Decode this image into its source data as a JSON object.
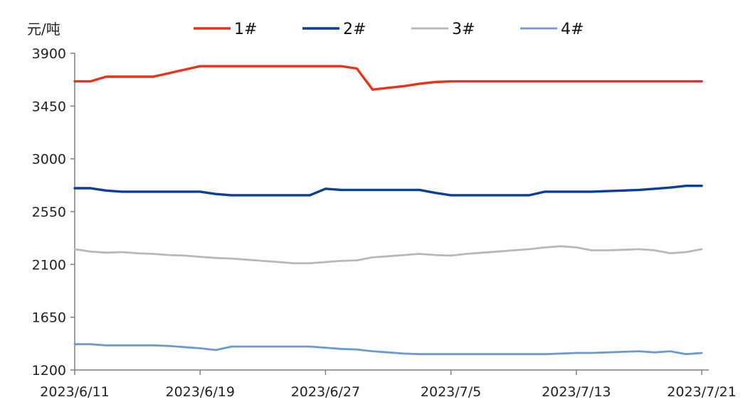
{
  "chart_data": {
    "type": "line",
    "unit_label": "元/吨",
    "ylim": [
      1200,
      3900
    ],
    "y_ticks": [
      "1200",
      "1650",
      "2100",
      "2550",
      "3000",
      "3450",
      "3900"
    ],
    "x_tick_labels": [
      "2023/6/11",
      "2023/6/19",
      "2023/6/27",
      "2023/7/5",
      "2023/7/13",
      "2023/7/21"
    ],
    "grid": false,
    "legend_position": "top",
    "series": [
      {
        "name": "1#",
        "color": "#e8331c",
        "points": [
          [
            "2023/6/11",
            3660
          ],
          [
            "2023/6/12",
            3660
          ],
          [
            "2023/6/13",
            3700
          ],
          [
            "2023/6/14",
            3700
          ],
          [
            "2023/6/15",
            3700
          ],
          [
            "2023/6/16",
            3700
          ],
          [
            "2023/6/17",
            3730
          ],
          [
            "2023/6/18",
            3760
          ],
          [
            "2023/6/19",
            3790
          ],
          [
            "2023/6/20",
            3790
          ],
          [
            "2023/6/21",
            3790
          ],
          [
            "2023/6/22",
            3790
          ],
          [
            "2023/6/23",
            3790
          ],
          [
            "2023/6/24",
            3790
          ],
          [
            "2023/6/25",
            3790
          ],
          [
            "2023/6/26",
            3790
          ],
          [
            "2023/6/27",
            3790
          ],
          [
            "2023/6/28",
            3790
          ],
          [
            "2023/6/29",
            3770
          ],
          [
            "2023/6/30",
            3590
          ],
          [
            "2023/7/1",
            3605
          ],
          [
            "2023/7/2",
            3620
          ],
          [
            "2023/7/3",
            3640
          ],
          [
            "2023/7/4",
            3655
          ],
          [
            "2023/7/5",
            3660
          ],
          [
            "2023/7/21",
            3660
          ]
        ]
      },
      {
        "name": "2#",
        "color": "#0a3f9a",
        "points": [
          [
            "2023/6/11",
            2750
          ],
          [
            "2023/6/12",
            2750
          ],
          [
            "2023/6/13",
            2730
          ],
          [
            "2023/6/14",
            2720
          ],
          [
            "2023/6/15",
            2720
          ],
          [
            "2023/6/16",
            2720
          ],
          [
            "2023/6/17",
            2720
          ],
          [
            "2023/6/18",
            2720
          ],
          [
            "2023/6/19",
            2720
          ],
          [
            "2023/6/20",
            2700
          ],
          [
            "2023/6/21",
            2690
          ],
          [
            "2023/6/22",
            2690
          ],
          [
            "2023/6/23",
            2690
          ],
          [
            "2023/6/24",
            2690
          ],
          [
            "2023/6/25",
            2690
          ],
          [
            "2023/6/26",
            2690
          ],
          [
            "2023/6/27",
            2745
          ],
          [
            "2023/6/28",
            2735
          ],
          [
            "2023/6/29",
            2735
          ],
          [
            "2023/6/30",
            2735
          ],
          [
            "2023/7/1",
            2735
          ],
          [
            "2023/7/2",
            2735
          ],
          [
            "2023/7/3",
            2735
          ],
          [
            "2023/7/4",
            2710
          ],
          [
            "2023/7/5",
            2690
          ],
          [
            "2023/7/6",
            2690
          ],
          [
            "2023/7/7",
            2690
          ],
          [
            "2023/7/8",
            2690
          ],
          [
            "2023/7/9",
            2690
          ],
          [
            "2023/7/10",
            2690
          ],
          [
            "2023/7/11",
            2720
          ],
          [
            "2023/7/12",
            2720
          ],
          [
            "2023/7/13",
            2720
          ],
          [
            "2023/7/14",
            2720
          ],
          [
            "2023/7/15",
            2725
          ],
          [
            "2023/7/16",
            2730
          ],
          [
            "2023/7/17",
            2735
          ],
          [
            "2023/7/18",
            2745
          ],
          [
            "2023/7/19",
            2755
          ],
          [
            "2023/7/20",
            2770
          ],
          [
            "2023/7/21",
            2770
          ]
        ]
      },
      {
        "name": "3#",
        "color": "#b8b8b8",
        "points": [
          [
            "2023/6/11",
            2230
          ],
          [
            "2023/6/12",
            2210
          ],
          [
            "2023/6/13",
            2200
          ],
          [
            "2023/6/14",
            2205
          ],
          [
            "2023/6/15",
            2195
          ],
          [
            "2023/6/16",
            2190
          ],
          [
            "2023/6/17",
            2180
          ],
          [
            "2023/6/18",
            2175
          ],
          [
            "2023/6/19",
            2165
          ],
          [
            "2023/6/20",
            2155
          ],
          [
            "2023/6/21",
            2150
          ],
          [
            "2023/6/22",
            2140
          ],
          [
            "2023/6/23",
            2130
          ],
          [
            "2023/6/24",
            2120
          ],
          [
            "2023/6/25",
            2110
          ],
          [
            "2023/6/26",
            2110
          ],
          [
            "2023/6/27",
            2120
          ],
          [
            "2023/6/28",
            2130
          ],
          [
            "2023/6/29",
            2135
          ],
          [
            "2023/6/30",
            2160
          ],
          [
            "2023/7/1",
            2170
          ],
          [
            "2023/7/2",
            2180
          ],
          [
            "2023/7/3",
            2190
          ],
          [
            "2023/7/4",
            2180
          ],
          [
            "2023/7/5",
            2175
          ],
          [
            "2023/7/6",
            2190
          ],
          [
            "2023/7/7",
            2200
          ],
          [
            "2023/7/8",
            2210
          ],
          [
            "2023/7/9",
            2220
          ],
          [
            "2023/7/10",
            2230
          ],
          [
            "2023/7/11",
            2245
          ],
          [
            "2023/7/12",
            2255
          ],
          [
            "2023/7/13",
            2245
          ],
          [
            "2023/7/14",
            2220
          ],
          [
            "2023/7/15",
            2220
          ],
          [
            "2023/7/16",
            2225
          ],
          [
            "2023/7/17",
            2230
          ],
          [
            "2023/7/18",
            2220
          ],
          [
            "2023/7/19",
            2195
          ],
          [
            "2023/7/20",
            2205
          ],
          [
            "2023/7/21",
            2230
          ]
        ]
      },
      {
        "name": "4#",
        "color": "#6a99d6",
        "points": [
          [
            "2023/6/11",
            1420
          ],
          [
            "2023/6/12",
            1420
          ],
          [
            "2023/6/13",
            1410
          ],
          [
            "2023/6/14",
            1410
          ],
          [
            "2023/6/15",
            1410
          ],
          [
            "2023/6/16",
            1410
          ],
          [
            "2023/6/17",
            1405
          ],
          [
            "2023/6/18",
            1395
          ],
          [
            "2023/6/19",
            1385
          ],
          [
            "2023/6/20",
            1370
          ],
          [
            "2023/6/21",
            1400
          ],
          [
            "2023/6/22",
            1400
          ],
          [
            "2023/6/23",
            1400
          ],
          [
            "2023/6/24",
            1400
          ],
          [
            "2023/6/25",
            1400
          ],
          [
            "2023/6/26",
            1400
          ],
          [
            "2023/6/27",
            1390
          ],
          [
            "2023/6/28",
            1380
          ],
          [
            "2023/6/29",
            1375
          ],
          [
            "2023/6/30",
            1360
          ],
          [
            "2023/7/1",
            1350
          ],
          [
            "2023/7/2",
            1340
          ],
          [
            "2023/7/3",
            1335
          ],
          [
            "2023/7/4",
            1335
          ],
          [
            "2023/7/5",
            1335
          ],
          [
            "2023/7/6",
            1335
          ],
          [
            "2023/7/7",
            1335
          ],
          [
            "2023/7/8",
            1335
          ],
          [
            "2023/7/9",
            1335
          ],
          [
            "2023/7/10",
            1335
          ],
          [
            "2023/7/11",
            1335
          ],
          [
            "2023/7/12",
            1340
          ],
          [
            "2023/7/13",
            1345
          ],
          [
            "2023/7/14",
            1345
          ],
          [
            "2023/7/15",
            1350
          ],
          [
            "2023/7/16",
            1355
          ],
          [
            "2023/7/17",
            1360
          ],
          [
            "2023/7/18",
            1350
          ],
          [
            "2023/7/19",
            1360
          ],
          [
            "2023/7/20",
            1335
          ],
          [
            "2023/7/21",
            1345
          ]
        ]
      }
    ]
  }
}
